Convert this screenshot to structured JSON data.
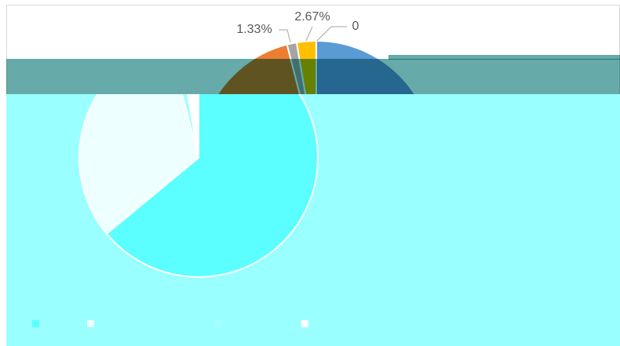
{
  "chart_data": {
    "type": "pie",
    "values": [
      0,
      64,
      32,
      1.33,
      2.67
    ],
    "value_labels": [
      "0",
      null,
      null,
      "1.33%",
      "2.67%"
    ],
    "colors": [
      "#70ad47",
      "#5b9bd5",
      "#ed7d31",
      "#a5a5a5",
      "#ffc000"
    ]
  }
}
